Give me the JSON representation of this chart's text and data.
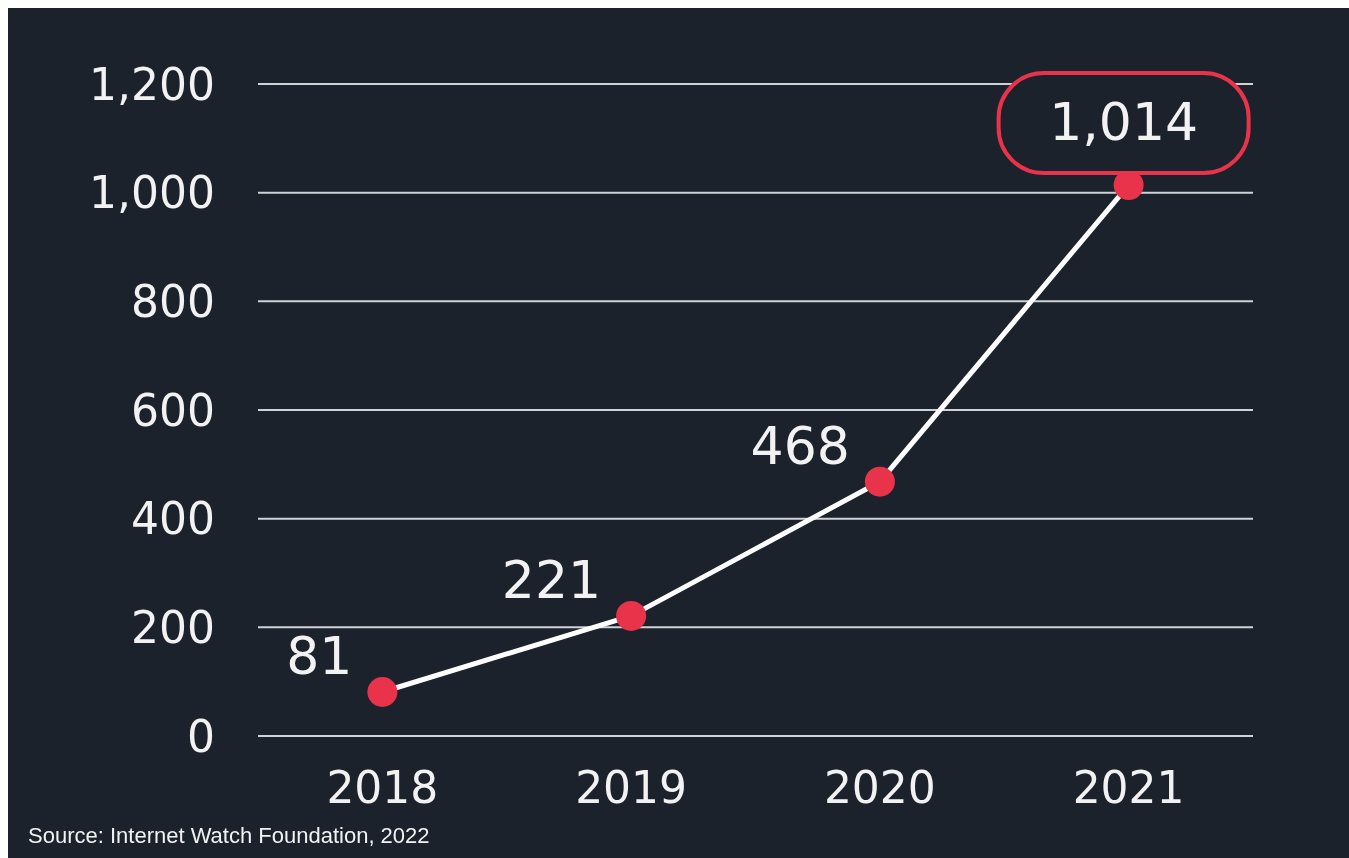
{
  "chart_data": {
    "type": "line",
    "categories": [
      "2018",
      "2019",
      "2020",
      "2021"
    ],
    "series": [
      {
        "color": "#ffffff",
        "colors": [
          "#e8334a",
          "#e8334a",
          "#e8334a",
          "#e8334a"
        ],
        "values": [
          81,
          221,
          468,
          1014
        ],
        "value_labels": [
          "81",
          "221",
          "468",
          "1,014"
        ]
      }
    ],
    "ylim": [
      0,
      1200
    ],
    "yticks": [
      0,
      200,
      400,
      600,
      800,
      {
        "value": 1000,
        "label": "1,000"
      },
      {
        "value": 1200,
        "label": "1,200"
      }
    ],
    "grid": "y",
    "marker": "circle",
    "line_style": "solid",
    "annotations": [
      "Source: Internet Watch Foundation, 2022"
    ]
  }
}
